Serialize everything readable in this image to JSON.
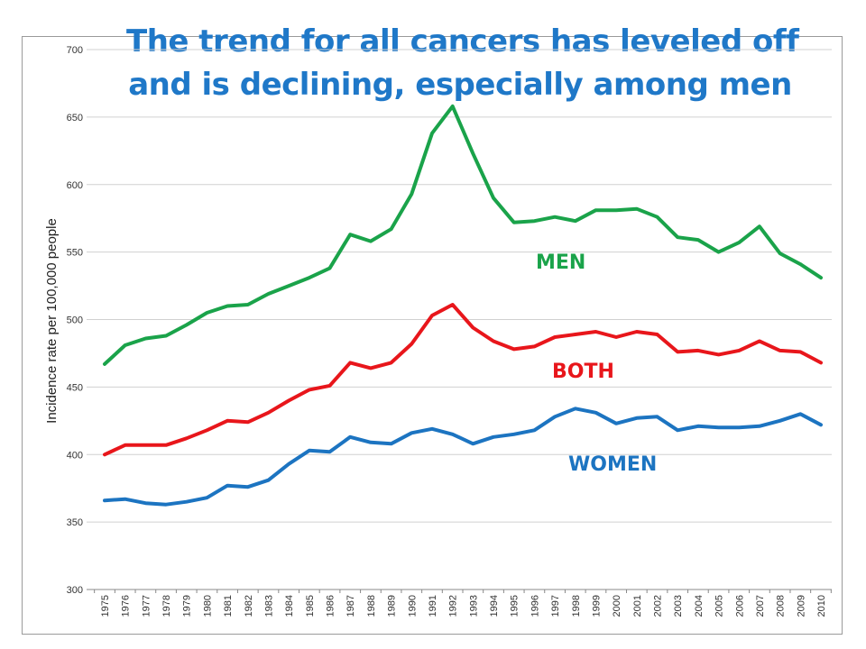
{
  "chart_data": {
    "type": "line",
    "title_lines": [
      "The trend for all cancers has leveled off",
      "and is declining, especially among men"
    ],
    "ylabel": "Incidence rate per 100,000 people",
    "xlabel": "",
    "ylim": [
      300,
      700
    ],
    "yticks": [
      300,
      350,
      400,
      450,
      500,
      550,
      600,
      650,
      700
    ],
    "grid": true,
    "x": [
      "1975",
      "1976",
      "1977",
      "1978",
      "1979",
      "1980",
      "1981",
      "1982",
      "1983",
      "1984",
      "1985",
      "1986",
      "1987",
      "1988",
      "1989",
      "1990",
      "1991",
      "1992",
      "1993",
      "1994",
      "1995",
      "1996",
      "1997",
      "1998",
      "1999",
      "2000",
      "2001",
      "2002",
      "2003",
      "2004",
      "2005",
      "2006",
      "2007",
      "2008",
      "2009",
      "2010"
    ],
    "series": [
      {
        "name": "MEN",
        "color": "#1aa34a",
        "values": [
          467,
          481,
          486,
          488,
          496,
          505,
          510,
          511,
          519,
          525,
          531,
          538,
          563,
          558,
          567,
          593,
          638,
          658,
          623,
          590,
          572,
          573,
          576,
          573,
          581,
          581,
          582,
          576,
          561,
          559,
          550,
          557,
          569,
          549,
          541,
          531
        ]
      },
      {
        "name": "BOTH",
        "color": "#e8161b",
        "values": [
          400,
          407,
          407,
          407,
          412,
          418,
          425,
          424,
          431,
          440,
          448,
          451,
          468,
          464,
          468,
          482,
          503,
          511,
          494,
          484,
          478,
          480,
          487,
          489,
          491,
          487,
          491,
          489,
          476,
          477,
          474,
          477,
          484,
          477,
          476,
          468
        ]
      },
      {
        "name": "WOMEN",
        "color": "#1c74c1",
        "values": [
          366,
          367,
          364,
          363,
          365,
          368,
          377,
          376,
          381,
          393,
          403,
          402,
          413,
          409,
          408,
          416,
          419,
          415,
          408,
          413,
          415,
          418,
          428,
          434,
          431,
          423,
          427,
          428,
          418,
          421,
          420,
          420,
          421,
          425,
          430,
          422
        ]
      }
    ]
  }
}
